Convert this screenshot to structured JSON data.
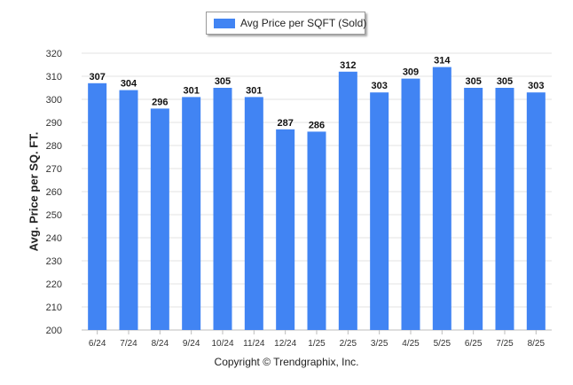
{
  "chart_data": {
    "type": "bar",
    "categories": [
      "6/24",
      "7/24",
      "8/24",
      "9/24",
      "10/24",
      "11/24",
      "12/24",
      "1/25",
      "2/25",
      "3/25",
      "4/25",
      "5/25",
      "6/25",
      "7/25",
      "8/25"
    ],
    "series": [
      {
        "name": "Avg Price per SQFT (Sold)",
        "values": [
          307,
          304,
          296,
          301,
          305,
          301,
          287,
          286,
          312,
          303,
          309,
          314,
          305,
          305,
          303
        ]
      }
    ],
    "ylabel": "Avg. Price per SQ. FT.",
    "xlabel": "",
    "ylim": [
      200,
      320
    ],
    "yticks": [
      200,
      210,
      220,
      230,
      240,
      250,
      260,
      270,
      280,
      290,
      300,
      310,
      320
    ],
    "grid": true,
    "legend_position": "top-center",
    "data_labels": true,
    "bar_color": "#4184F3"
  },
  "footer": {
    "copyright": "Copyright © Trendgraphix, Inc."
  }
}
